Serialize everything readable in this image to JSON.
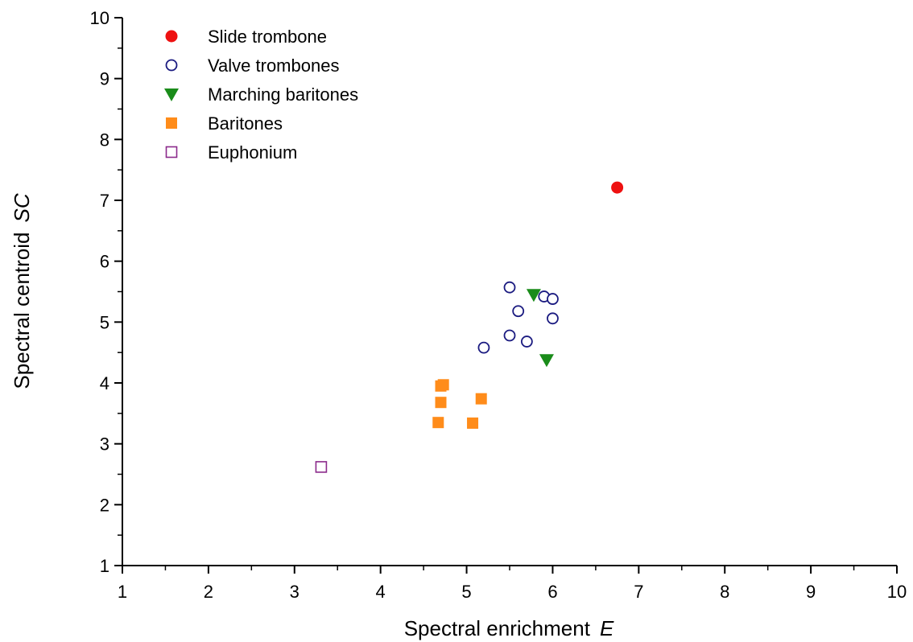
{
  "chart_data": {
    "type": "scatter",
    "title": "",
    "xlabel": {
      "text": "Spectral enrichment",
      "symbol": "E"
    },
    "ylabel": {
      "text": "Spectral centroid",
      "symbol": "SC"
    },
    "xlim": [
      1,
      10
    ],
    "ylim": [
      1,
      10
    ],
    "xticks": [
      1,
      2,
      3,
      4,
      5,
      6,
      7,
      8,
      9,
      10
    ],
    "yticks": [
      1,
      2,
      3,
      4,
      5,
      6,
      7,
      8,
      9,
      10
    ],
    "grid": false,
    "legend_position": "top-left",
    "series": [
      {
        "name": "Slide trombone",
        "marker": "filled-circle",
        "color": "#ee1111",
        "points": [
          [
            6.75,
            7.21
          ]
        ]
      },
      {
        "name": "Valve trombones",
        "marker": "open-circle",
        "color": "#1a1a80",
        "points": [
          [
            5.5,
            5.57
          ],
          [
            5.9,
            5.42
          ],
          [
            6.0,
            5.38
          ],
          [
            5.6,
            5.18
          ],
          [
            6.0,
            5.06
          ],
          [
            5.5,
            4.78
          ],
          [
            5.7,
            4.68
          ],
          [
            5.2,
            4.58
          ]
        ]
      },
      {
        "name": "Marching baritones",
        "marker": "filled-triangle-down",
        "color": "#1a8c1a",
        "points": [
          [
            5.78,
            5.45
          ],
          [
            5.93,
            4.38
          ]
        ]
      },
      {
        "name": "Baritones",
        "marker": "filled-square",
        "color": "#ff8c1a",
        "points": [
          [
            4.7,
            3.95
          ],
          [
            4.73,
            3.97
          ],
          [
            4.7,
            3.68
          ],
          [
            5.17,
            3.74
          ],
          [
            4.67,
            3.35
          ],
          [
            5.07,
            3.34
          ]
        ]
      },
      {
        "name": "Euphonium",
        "marker": "open-square",
        "color": "#8b2a8b",
        "points": [
          [
            3.31,
            2.62
          ]
        ]
      }
    ]
  }
}
